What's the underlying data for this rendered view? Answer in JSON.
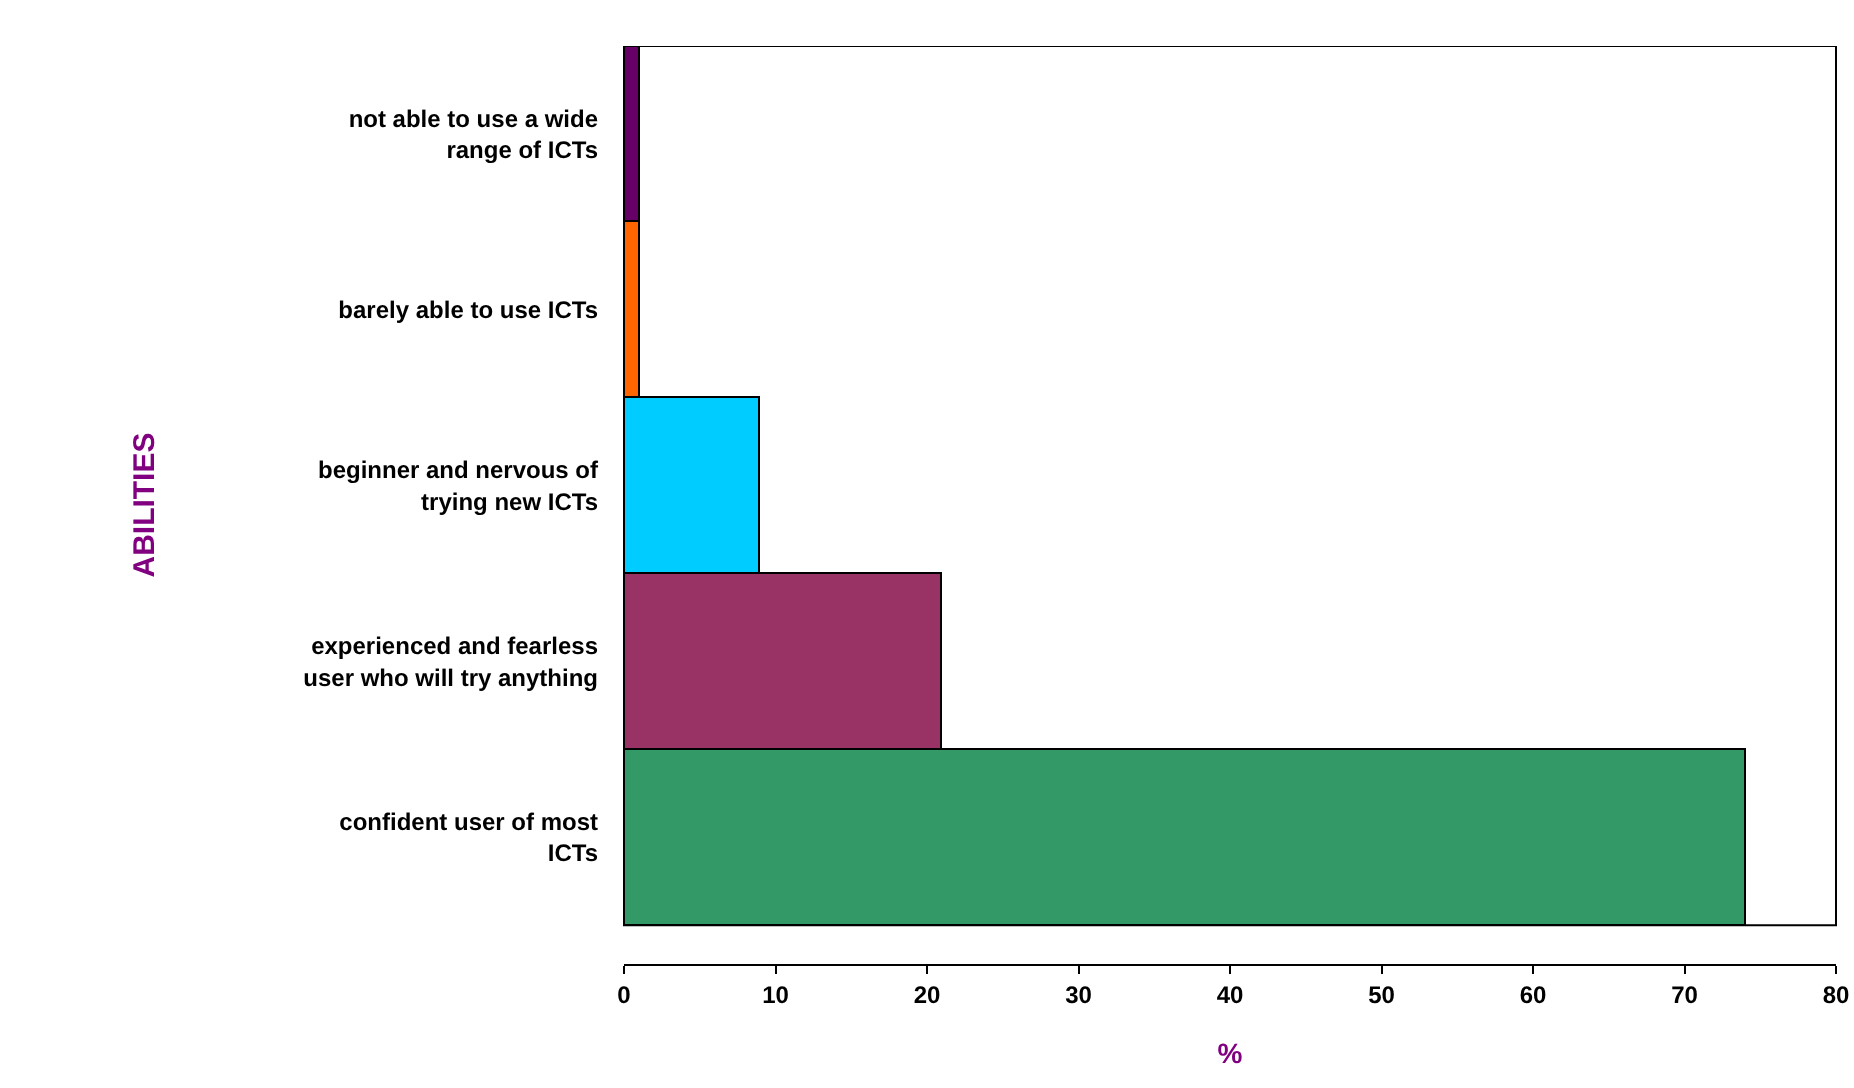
{
  "chart_data": {
    "type": "bar",
    "orientation": "horizontal",
    "categories": [
      "not able to use a wide range of ICTs",
      "barely able to use ICTs",
      "beginner and nervous of trying new ICTs",
      "experienced and fearless user who will try anything",
      "confident user of most ICTs"
    ],
    "values": [
      1,
      1,
      9,
      21,
      74
    ],
    "colors": [
      "#660066",
      "#ff6600",
      "#00ccff",
      "#993366",
      "#339966"
    ],
    "xlim": [
      0,
      80
    ],
    "xticks": [
      0,
      10,
      20,
      30,
      40,
      50,
      60,
      70,
      80
    ],
    "xlabel": "%",
    "ylabel": "ABILITIES"
  }
}
